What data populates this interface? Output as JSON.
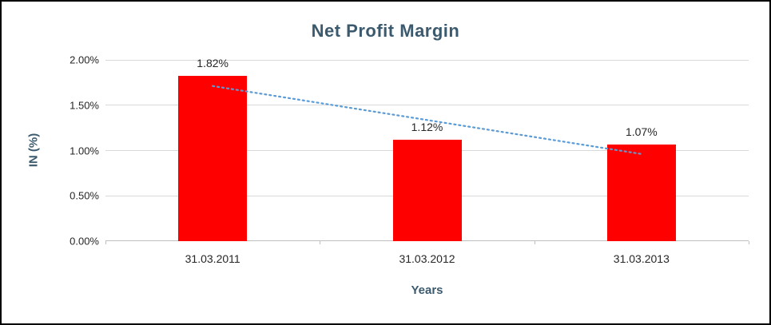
{
  "chart_data": {
    "type": "bar",
    "title": "Net Profit Margin",
    "categories": [
      "31.03.2011",
      "31.03.2012",
      "31.03.2013"
    ],
    "values": [
      1.82,
      1.12,
      1.07
    ],
    "data_labels": [
      "1.82%",
      "1.12%",
      "1.07%"
    ],
    "xlabel": "Years",
    "ylabel": "IN (%)",
    "ylim": [
      0,
      2
    ],
    "ytick_values": [
      0,
      0.5,
      1,
      1.5,
      2
    ],
    "ytick_labels": [
      "0.00%",
      "0.50%",
      "1.00%",
      "1.50%",
      "2.00%"
    ],
    "grid": true,
    "legend": false,
    "trendline": {
      "type": "linear",
      "style": "dotted"
    },
    "colors": {
      "bar": "#FF0000",
      "trendline": "#5B9BD5",
      "title": "#3C5A6E",
      "axis_text": "#262626",
      "gridline": "#D9D9D9",
      "axis_line": "#BFBFBF",
      "background": "#FFFFFF",
      "border": "#000000"
    }
  }
}
